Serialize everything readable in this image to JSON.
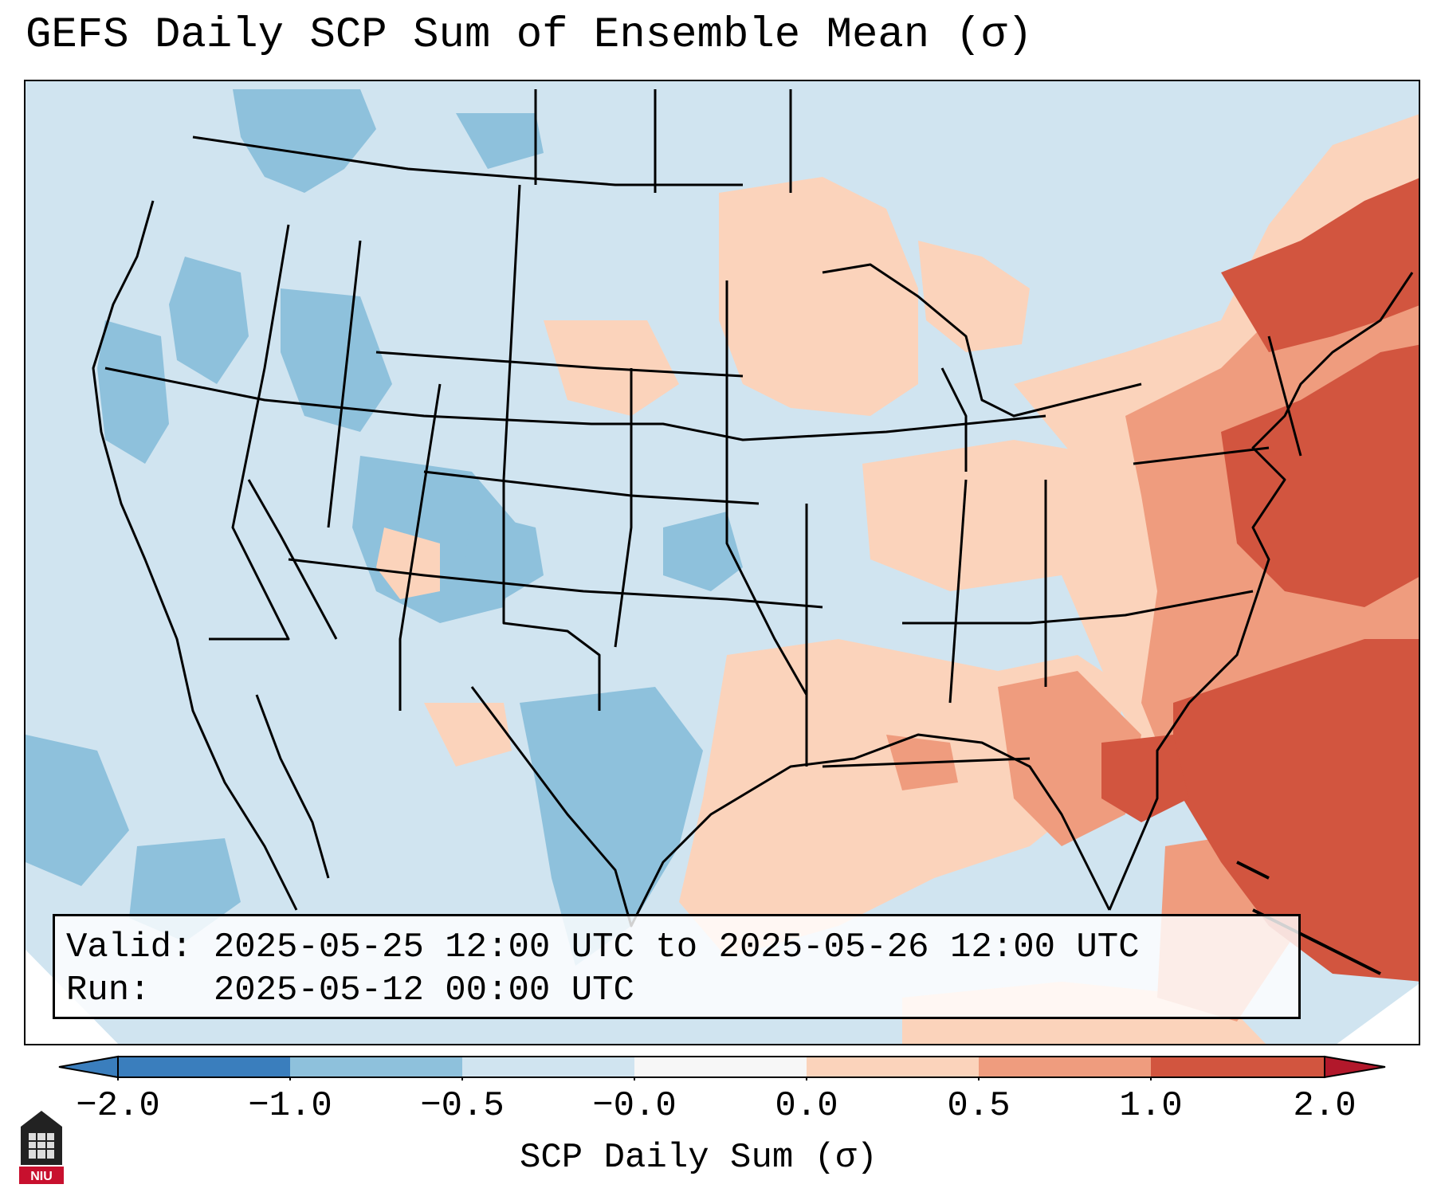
{
  "title": "GEFS Daily SCP Sum of Ensemble Mean (σ)",
  "info": {
    "valid_line": "Valid: 2025-05-25 12:00 UTC to 2025-05-26 12:00 UTC",
    "run_line": "Run:   2025-05-12 00:00 UTC"
  },
  "colorbar": {
    "label": "SCP Daily Sum (σ)",
    "ticks": [
      "−2.0",
      "−1.0",
      "−0.5",
      "−0.0",
      "0.0",
      "0.5",
      "1.0",
      "2.0"
    ],
    "colors": [
      "#3a7ebd",
      "#8ec1dc",
      "#d0e4f0",
      "#f7f7f7",
      "#fbd3bb",
      "#ef9c7e",
      "#d2553f",
      "#b2182b"
    ]
  },
  "map": {
    "region": "Contiguous United States",
    "fill_value_colors": {
      "background": "#d0e4f0",
      "negative_moderate": "#8ec1dc",
      "positive_light": "#fbd3bb",
      "positive_moderate": "#ef9c7e",
      "positive_strong": "#d2553f"
    }
  },
  "logo": {
    "text": "NIU",
    "color": "#c8102e"
  }
}
